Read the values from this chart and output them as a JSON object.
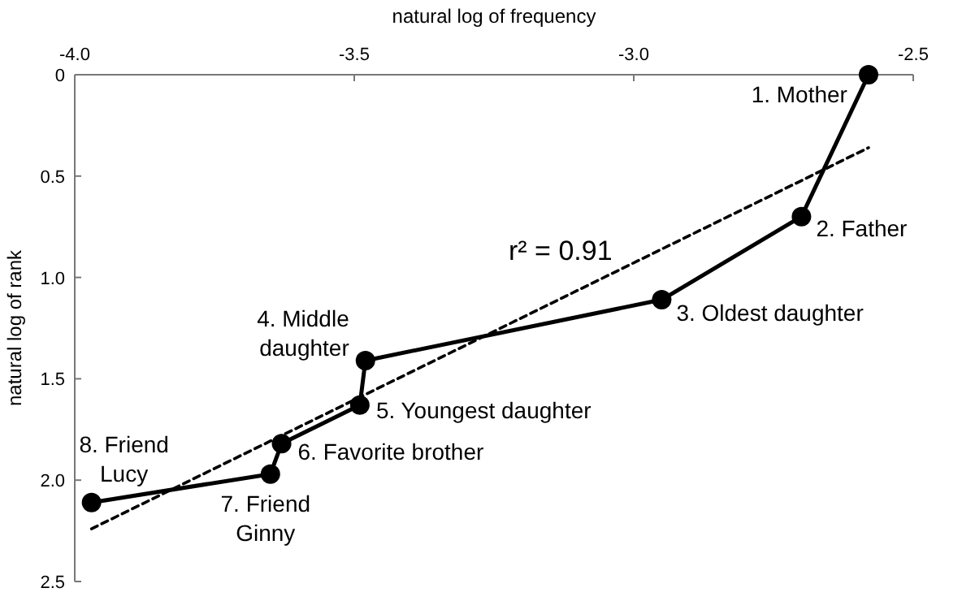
{
  "chart_data": {
    "type": "line",
    "xlabel": "natural log of frequency",
    "ylabel": "natural log of rank",
    "xlim": [
      -4.0,
      -2.5
    ],
    "xticks": [
      {
        "value": -4,
        "label": "-4.0"
      },
      -3.5,
      {
        "value": -3,
        "label": "-3.0"
      },
      -2.5
    ],
    "ylim": [
      2.5,
      0
    ],
    "yticks": [
      0,
      0.5,
      {
        "value": 1,
        "label": "1.0"
      },
      1.5,
      {
        "value": 2,
        "label": "2.0"
      },
      2.5
    ],
    "grid": false,
    "series": [
      {
        "color": "#000000",
        "marker": "circle",
        "line_style": "solid",
        "x": [
          -2.58,
          -2.7,
          -2.95,
          -3.48,
          -3.49,
          -3.63,
          -3.65,
          -3.97
        ],
        "values": [
          0,
          0.7,
          1.11,
          1.41,
          1.63,
          1.82,
          1.97,
          2.11
        ]
      },
      {
        "color": "#000000",
        "marker": "none",
        "line_style": "dashed",
        "x": [
          -3.97,
          -2.58
        ],
        "values": [
          2.24,
          0.36
        ]
      }
    ],
    "annotations": [
      {
        "text": "1. Mother",
        "x": -2.58,
        "y": 0
      },
      {
        "text": "2. Father",
        "x": -2.7,
        "y": 0.7
      },
      {
        "text": "3. Oldest daughter",
        "x": -2.95,
        "y": 1.11
      },
      {
        "text": "4. Middle\ndaughter",
        "x": -3.48,
        "y": 1.41
      },
      {
        "text": "5. Youngest daughter",
        "x": -3.49,
        "y": 1.63
      },
      {
        "text": "6. Favorite brother",
        "x": -3.63,
        "y": 1.82
      },
      {
        "text": "7. Friend\nGinny",
        "x": -3.65,
        "y": 1.97
      },
      {
        "text": "8. Friend\nLucy",
        "x": -3.97,
        "y": 2.11
      },
      "r² = 0.91"
    ]
  }
}
